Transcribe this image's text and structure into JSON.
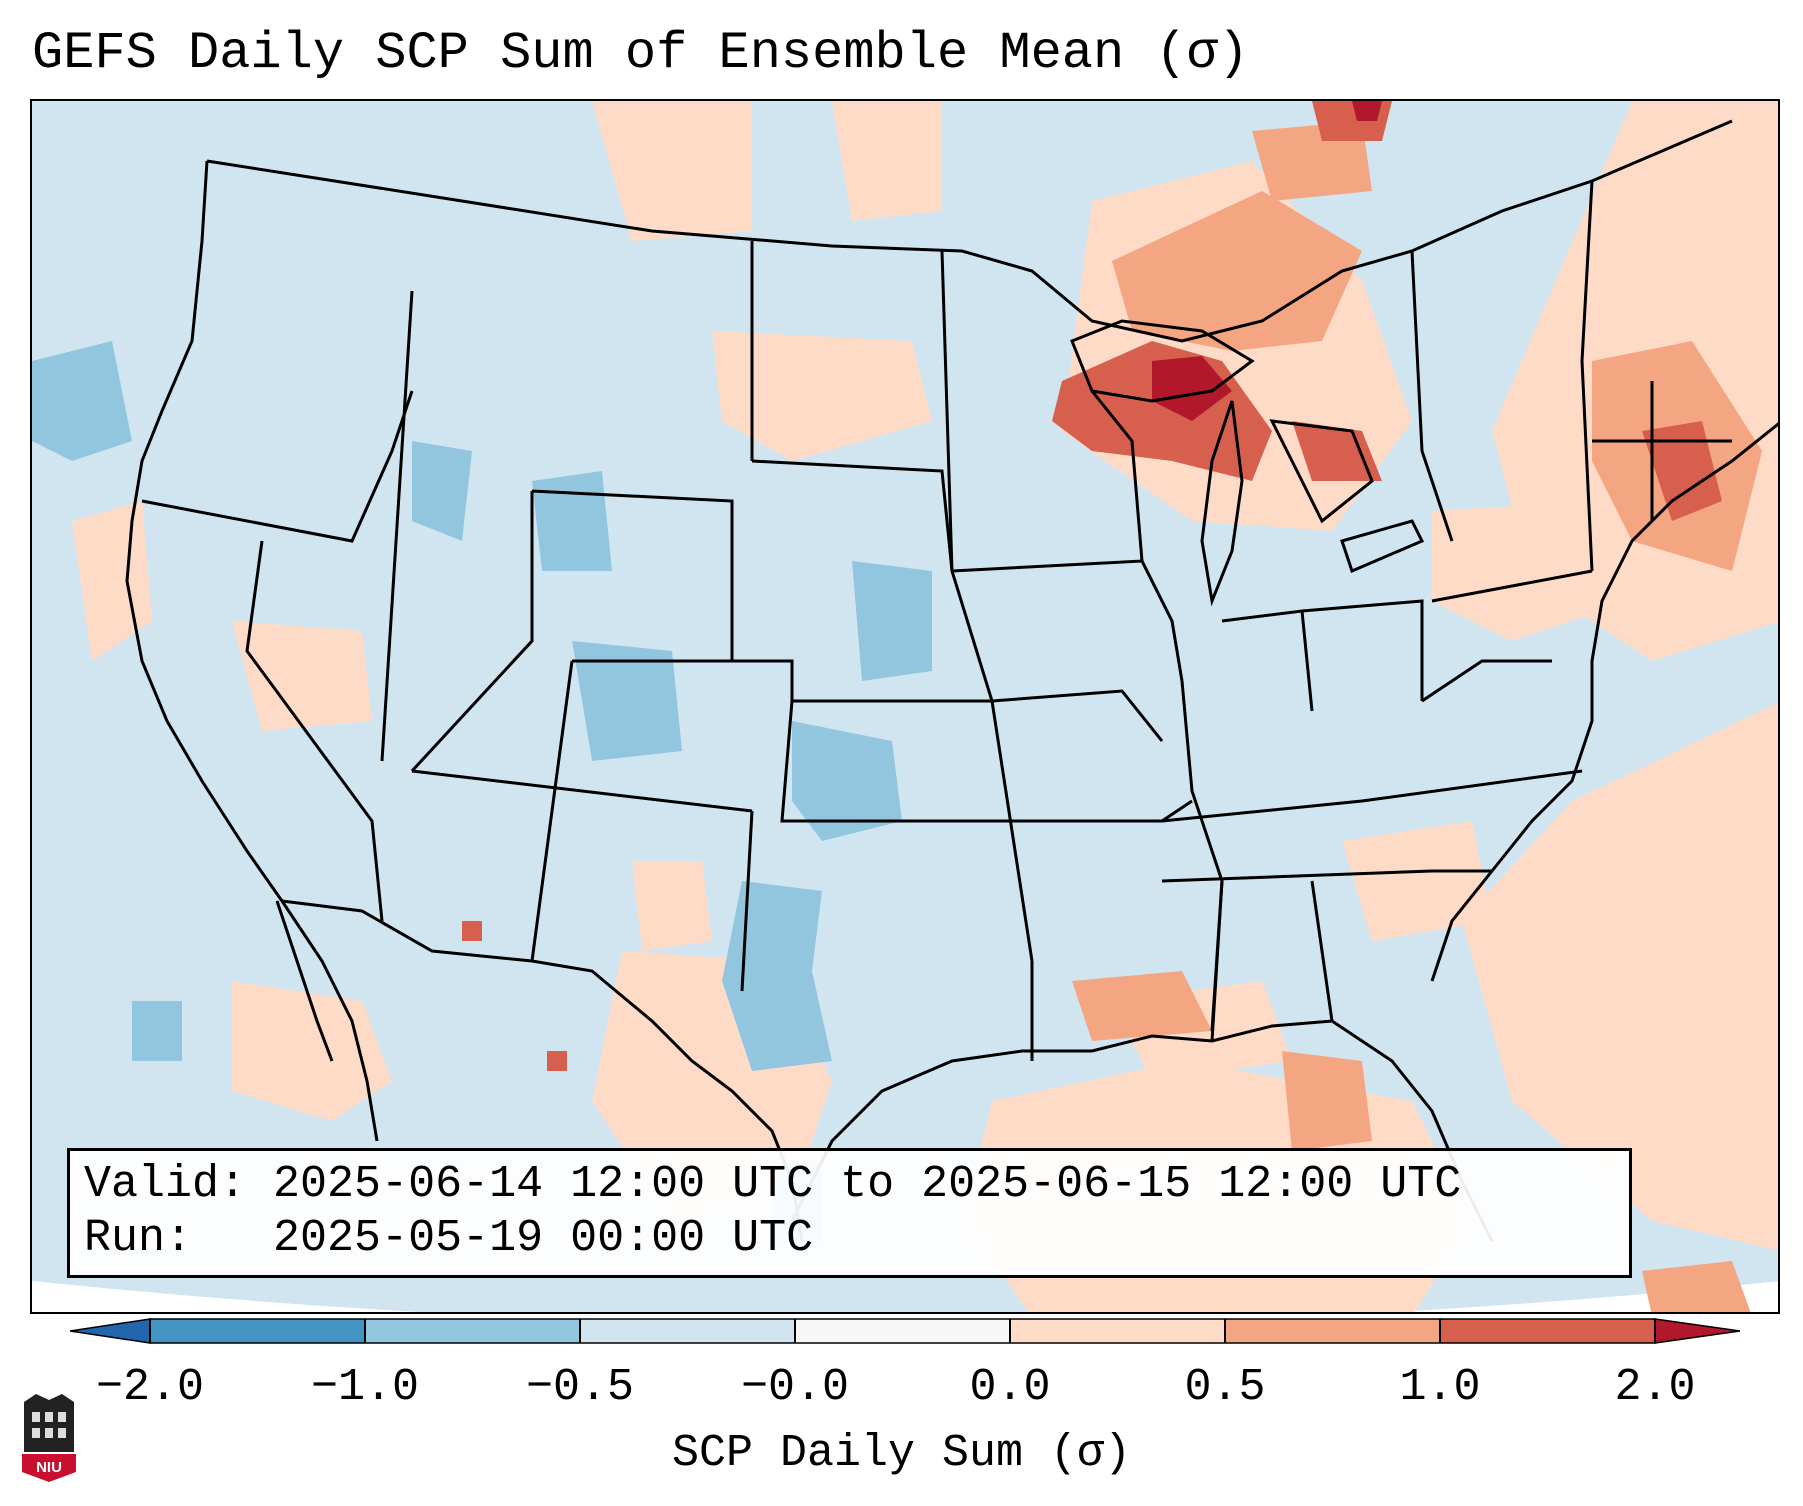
{
  "title": "GEFS Daily SCP Sum of Ensemble Mean (σ)",
  "info": {
    "valid_label": "Valid:",
    "valid_text": "2025-06-14 12:00 UTC to 2025-06-15 12:00 UTC",
    "run_label": "Run:",
    "run_text": "2025-05-19 00:00 UTC"
  },
  "colorbar": {
    "label": "SCP Daily Sum (σ)",
    "ticks": [
      "−2.0",
      "−1.0",
      "−0.5",
      "−0.0",
      "0.0",
      "0.5",
      "1.0",
      "2.0"
    ],
    "colors": [
      "#4393c3",
      "#92c5de",
      "#d1e5f0",
      "#f7f7f7",
      "#fddbc7",
      "#f4a582",
      "#d6604d"
    ],
    "under_color": "#2166ac",
    "over_color": "#b2182b"
  },
  "map_colors": {
    "background": "#d1e5f0",
    "outer": "#ffffff",
    "land_lines": "#000000"
  },
  "logo": {
    "text": "NIU"
  }
}
